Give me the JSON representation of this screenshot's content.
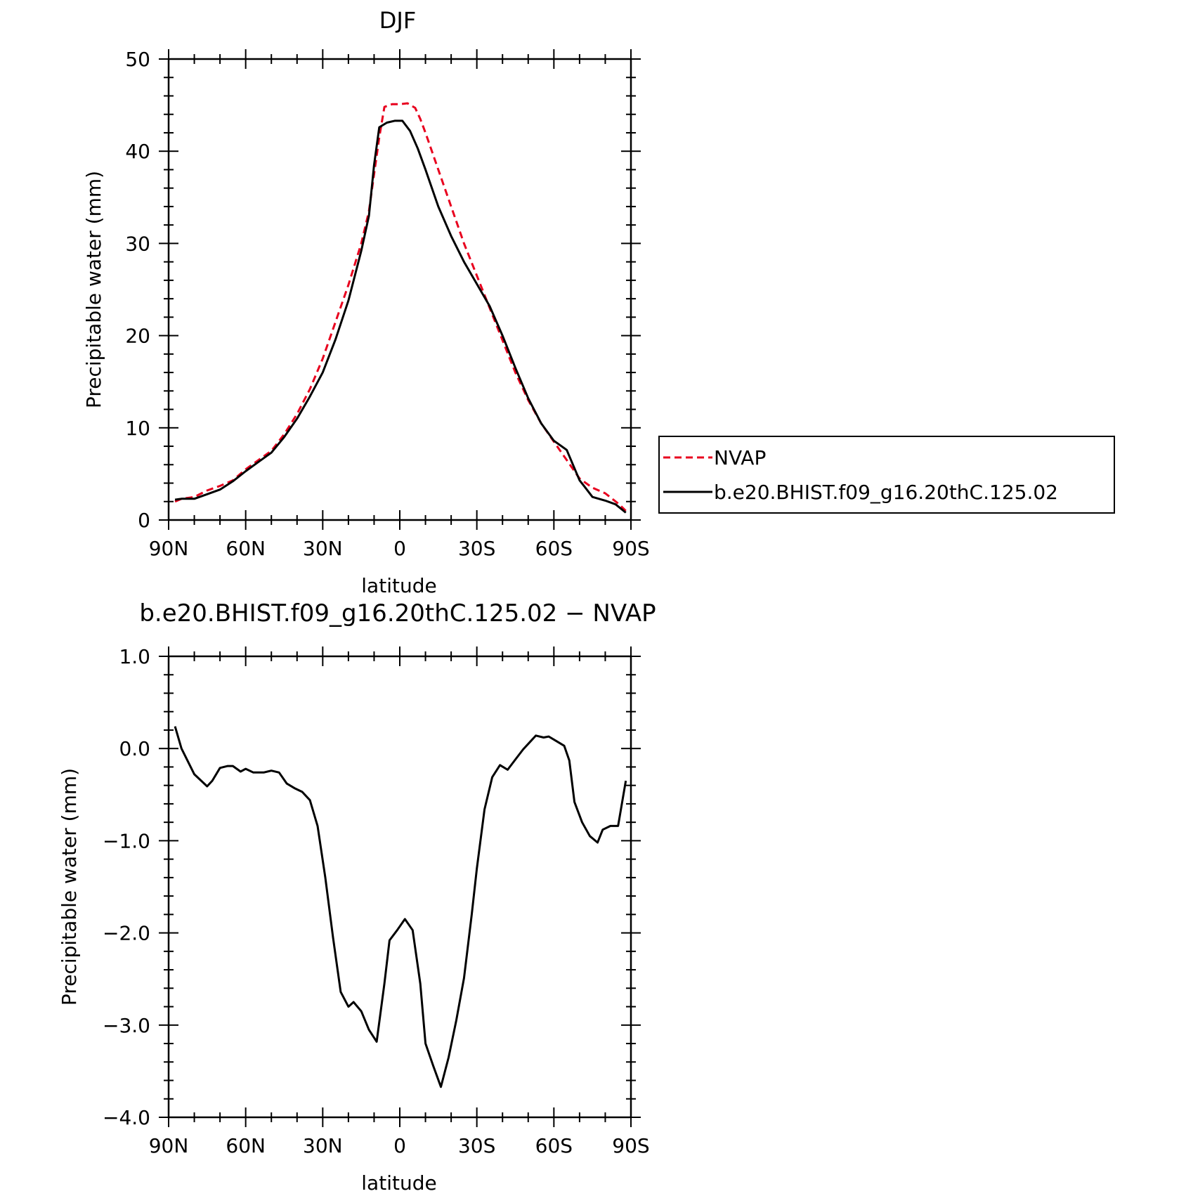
{
  "chart_data": [
    {
      "type": "line",
      "title": "DJF",
      "xlabel": "latitude",
      "ylabel": "Precipitable water (mm)",
      "xlim": [
        90,
        -90
      ],
      "ylim": [
        0,
        50
      ],
      "x_ticks": [
        {
          "value": 90,
          "label": "90N"
        },
        {
          "value": 60,
          "label": "60N"
        },
        {
          "value": 30,
          "label": "30N"
        },
        {
          "value": 0,
          "label": "0"
        },
        {
          "value": -30,
          "label": "30S"
        },
        {
          "value": -60,
          "label": "60S"
        },
        {
          "value": -90,
          "label": "90S"
        }
      ],
      "y_ticks": [
        {
          "value": 0,
          "label": "0"
        },
        {
          "value": 10,
          "label": "10"
        },
        {
          "value": 20,
          "label": "20"
        },
        {
          "value": 30,
          "label": "30"
        },
        {
          "value": 40,
          "label": "40"
        },
        {
          "value": 50,
          "label": "50"
        }
      ],
      "legend": {
        "position": "right",
        "entries": [
          "NVAP",
          "b.e20.BHIST.f09_g16.20thC.125.02"
        ]
      },
      "series": [
        {
          "name": "NVAP",
          "color": "#e8001e",
          "dash": "dashed",
          "points": [
            [
              87.5,
              2.0
            ],
            [
              85,
              2.3
            ],
            [
              80,
              2.5
            ],
            [
              75,
              3.2
            ],
            [
              70,
              3.7
            ],
            [
              65,
              4.3
            ],
            [
              60,
              5.5
            ],
            [
              55,
              6.5
            ],
            [
              50,
              7.5
            ],
            [
              45,
              9.3
            ],
            [
              40,
              11.5
            ],
            [
              35,
              14.2
            ],
            [
              30,
              17.5
            ],
            [
              25,
              21.5
            ],
            [
              20,
              25.5
            ],
            [
              15,
              30.0
            ],
            [
              12,
              33.5
            ],
            [
              10,
              37.5
            ],
            [
              8,
              41.5
            ],
            [
              6,
              44.8
            ],
            [
              3,
              45.1
            ],
            [
              0,
              45.1
            ],
            [
              -3,
              45.2
            ],
            [
              -6,
              44.7
            ],
            [
              -8,
              43.5
            ],
            [
              -10,
              42.0
            ],
            [
              -15,
              38.0
            ],
            [
              -20,
              34.0
            ],
            [
              -25,
              30.0
            ],
            [
              -30,
              26.5
            ],
            [
              -35,
              23.0
            ],
            [
              -40,
              19.5
            ],
            [
              -45,
              16.0
            ],
            [
              -50,
              13.0
            ],
            [
              -55,
              10.5
            ],
            [
              -60,
              8.5
            ],
            [
              -65,
              6.5
            ],
            [
              -70,
              4.5
            ],
            [
              -75,
              3.5
            ],
            [
              -80,
              2.9
            ],
            [
              -85,
              1.8
            ],
            [
              -88,
              1.0
            ]
          ]
        },
        {
          "name": "b.e20.BHIST.f09_g16.20thC.125.02",
          "color": "#000000",
          "dash": "solid",
          "points": [
            [
              87.5,
              2.2
            ],
            [
              85,
              2.3
            ],
            [
              80,
              2.3
            ],
            [
              75,
              2.8
            ],
            [
              70,
              3.3
            ],
            [
              65,
              4.2
            ],
            [
              60,
              5.3
            ],
            [
              55,
              6.3
            ],
            [
              50,
              7.3
            ],
            [
              45,
              9.0
            ],
            [
              40,
              11.0
            ],
            [
              35,
              13.4
            ],
            [
              30,
              16.0
            ],
            [
              25,
              19.6
            ],
            [
              20,
              23.8
            ],
            [
              15,
              29.2
            ],
            [
              12,
              33.0
            ],
            [
              10,
              38.5
            ],
            [
              8,
              42.6
            ],
            [
              5,
              43.1
            ],
            [
              2,
              43.3
            ],
            [
              -1,
              43.3
            ],
            [
              -4,
              42.2
            ],
            [
              -7,
              40.3
            ],
            [
              -10,
              38.0
            ],
            [
              -15,
              34.0
            ],
            [
              -20,
              30.8
            ],
            [
              -25,
              28.0
            ],
            [
              -30,
              25.6
            ],
            [
              -35,
              23.2
            ],
            [
              -40,
              20.0
            ],
            [
              -45,
              16.5
            ],
            [
              -50,
              13.2
            ],
            [
              -55,
              10.5
            ],
            [
              -60,
              8.6
            ],
            [
              -65,
              7.6
            ],
            [
              -70,
              4.3
            ],
            [
              -72,
              3.6
            ],
            [
              -75,
              2.5
            ],
            [
              -80,
              2.1
            ],
            [
              -84,
              1.7
            ],
            [
              -88,
              0.8
            ]
          ]
        }
      ]
    },
    {
      "type": "line",
      "title": "b.e20.BHIST.f09_g16.20thC.125.02 − NVAP",
      "xlabel": "latitude",
      "ylabel": "Precipitable water (mm)",
      "xlim": [
        90,
        -90
      ],
      "ylim": [
        -4,
        1
      ],
      "x_ticks": [
        {
          "value": 90,
          "label": "90N"
        },
        {
          "value": 60,
          "label": "60N"
        },
        {
          "value": 30,
          "label": "30N"
        },
        {
          "value": 0,
          "label": "0"
        },
        {
          "value": -30,
          "label": "30S"
        },
        {
          "value": -60,
          "label": "60S"
        },
        {
          "value": -90,
          "label": "90S"
        }
      ],
      "y_ticks": [
        {
          "value": 1,
          "label": "1.0"
        },
        {
          "value": 0,
          "label": "0.0"
        },
        {
          "value": -1,
          "label": "−1.0"
        },
        {
          "value": -2,
          "label": "−2.0"
        },
        {
          "value": -3,
          "label": "−3.0"
        },
        {
          "value": -4,
          "label": "−4.0"
        }
      ],
      "series": [
        {
          "color": "#000000",
          "dash": "solid",
          "points": [
            [
              87.5,
              0.24
            ],
            [
              85,
              0.0
            ],
            [
              80,
              -0.28
            ],
            [
              75,
              -0.41
            ],
            [
              73,
              -0.35
            ],
            [
              70,
              -0.21
            ],
            [
              67,
              -0.19
            ],
            [
              65,
              -0.19
            ],
            [
              62,
              -0.25
            ],
            [
              60,
              -0.22
            ],
            [
              57,
              -0.26
            ],
            [
              53,
              -0.26
            ],
            [
              50,
              -0.24
            ],
            [
              47,
              -0.26
            ],
            [
              44,
              -0.38
            ],
            [
              41,
              -0.43
            ],
            [
              38,
              -0.47
            ],
            [
              35,
              -0.56
            ],
            [
              32,
              -0.84
            ],
            [
              29,
              -1.4
            ],
            [
              26,
              -2.05
            ],
            [
              23,
              -2.64
            ],
            [
              20,
              -2.8
            ],
            [
              18,
              -2.75
            ],
            [
              15,
              -2.85
            ],
            [
              12,
              -3.05
            ],
            [
              9,
              -3.18
            ],
            [
              6,
              -2.55
            ],
            [
              4,
              -2.08
            ],
            [
              1,
              -1.97
            ],
            [
              -2,
              -1.85
            ],
            [
              -5,
              -1.97
            ],
            [
              -8,
              -2.55
            ],
            [
              -10,
              -3.2
            ],
            [
              -13,
              -3.44
            ],
            [
              -16,
              -3.67
            ],
            [
              -19,
              -3.35
            ],
            [
              -22,
              -2.95
            ],
            [
              -25,
              -2.49
            ],
            [
              -28,
              -1.8
            ],
            [
              -30,
              -1.3
            ],
            [
              -33,
              -0.66
            ],
            [
              -36,
              -0.31
            ],
            [
              -39,
              -0.18
            ],
            [
              -42,
              -0.23
            ],
            [
              -45,
              -0.12
            ],
            [
              -48,
              -0.01
            ],
            [
              -51,
              0.08
            ],
            [
              -53,
              0.14
            ],
            [
              -56,
              0.12
            ],
            [
              -58,
              0.13
            ],
            [
              -61,
              0.08
            ],
            [
              -64,
              0.03
            ],
            [
              -66,
              -0.13
            ],
            [
              -68,
              -0.58
            ],
            [
              -71,
              -0.8
            ],
            [
              -74,
              -0.95
            ],
            [
              -77,
              -1.02
            ],
            [
              -79,
              -0.88
            ],
            [
              -82,
              -0.84
            ],
            [
              -85,
              -0.84
            ],
            [
              -88,
              -0.35
            ]
          ]
        }
      ]
    }
  ]
}
